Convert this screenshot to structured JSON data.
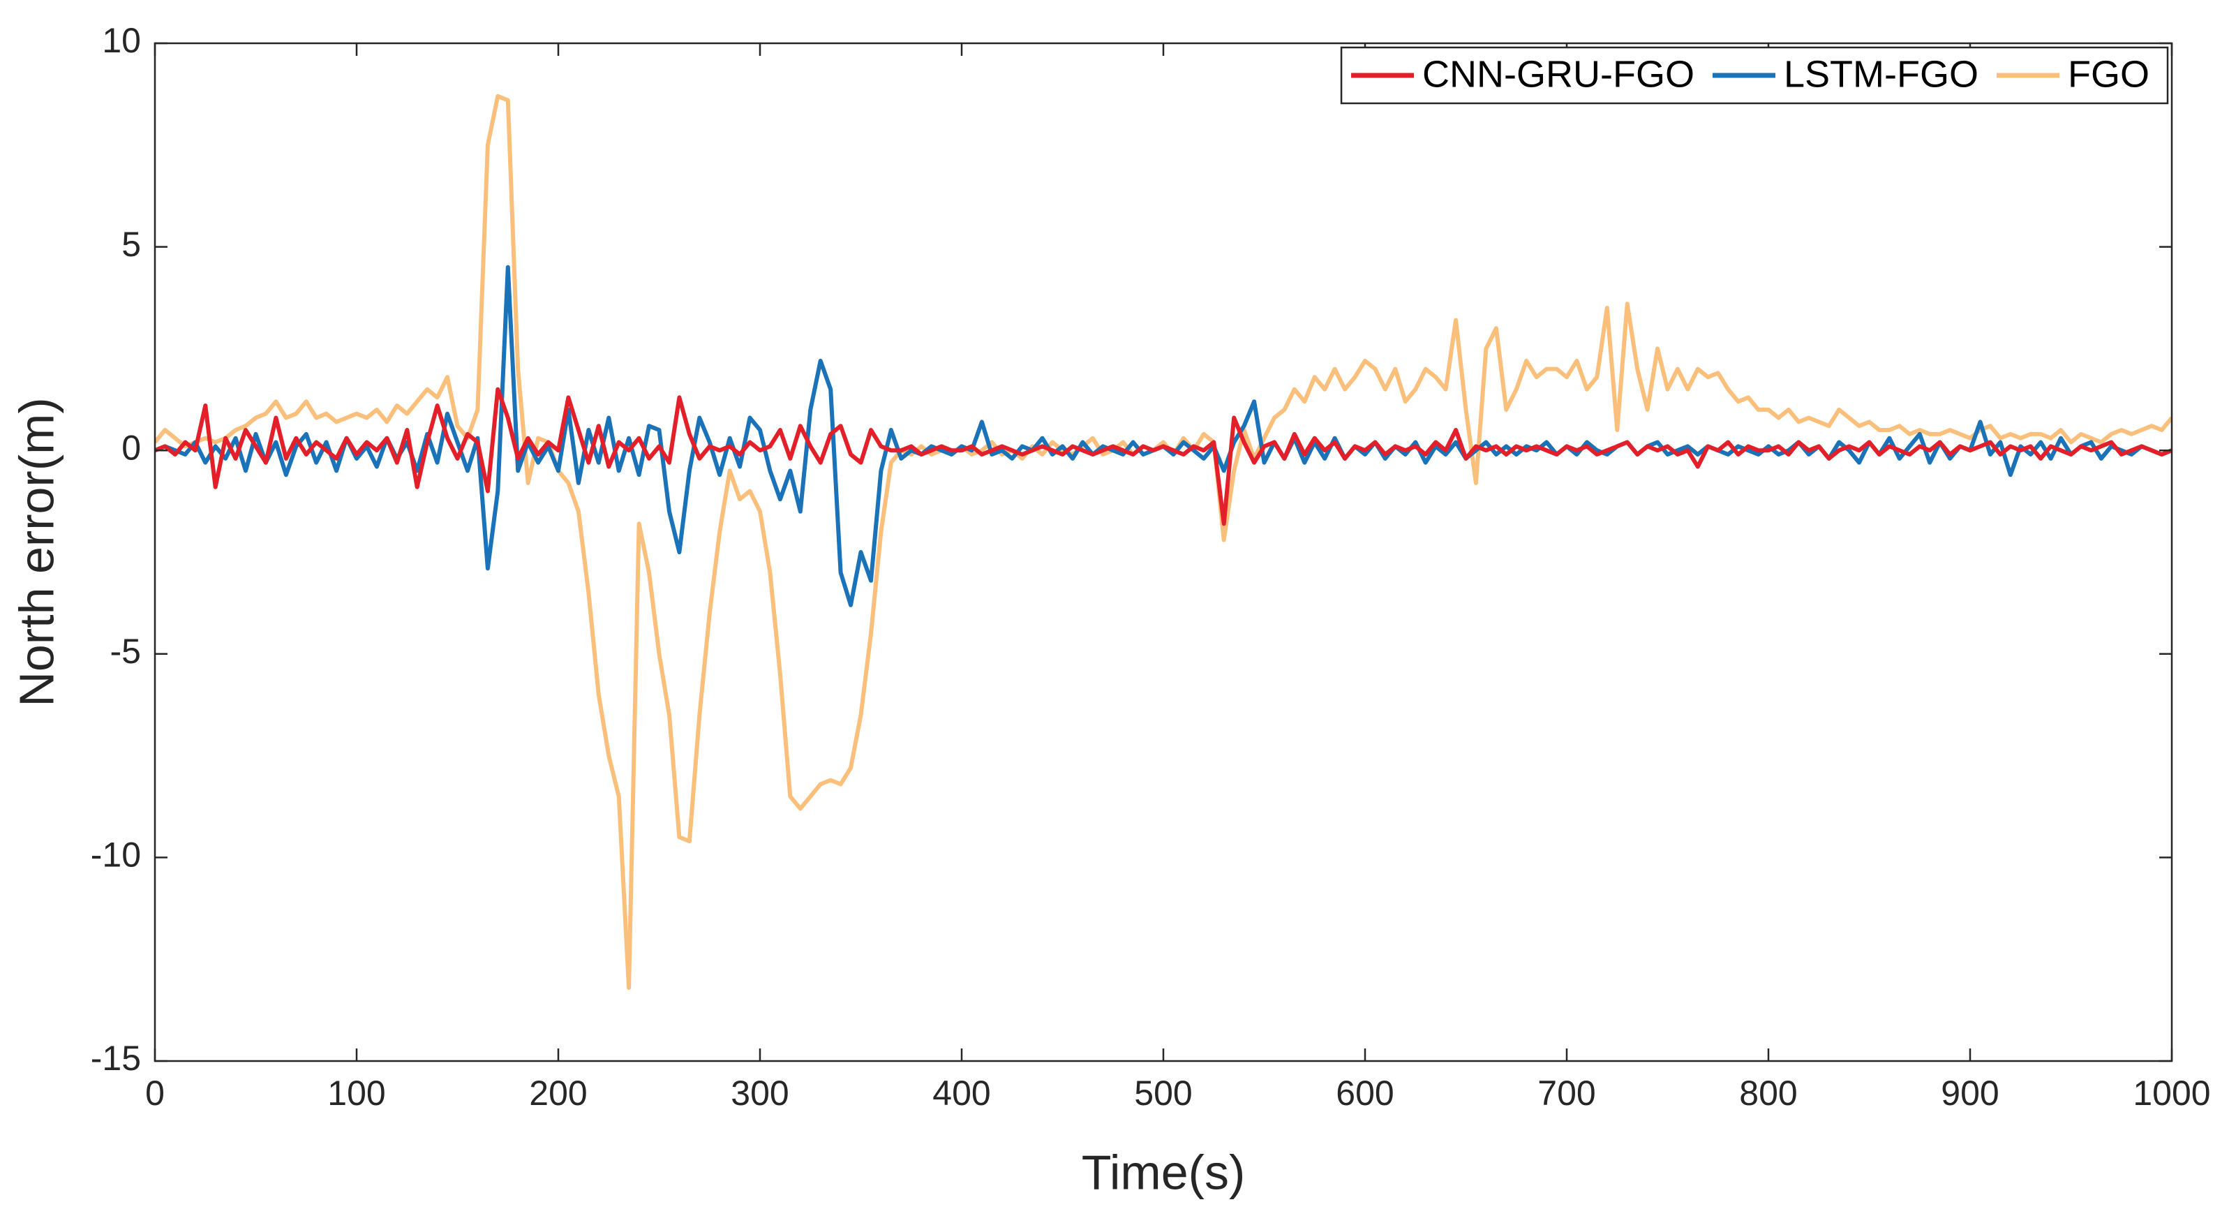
{
  "chart_data": {
    "type": "line",
    "xlabel": "Time(s)",
    "ylabel": "North error(m)",
    "xlim": [
      0,
      1000
    ],
    "xticks": [
      0,
      100,
      200,
      300,
      400,
      500,
      600,
      700,
      800,
      900,
      1000
    ],
    "ylim": [
      -15,
      10
    ],
    "yticks": [
      -15,
      -10,
      -5,
      0,
      5,
      10
    ],
    "legend": "top-right",
    "x": [
      0,
      5,
      10,
      15,
      20,
      25,
      30,
      35,
      40,
      45,
      50,
      55,
      60,
      65,
      70,
      75,
      80,
      85,
      90,
      95,
      100,
      105,
      110,
      115,
      120,
      125,
      130,
      135,
      140,
      145,
      150,
      155,
      160,
      165,
      170,
      175,
      180,
      185,
      190,
      195,
      200,
      205,
      210,
      215,
      220,
      225,
      230,
      235,
      240,
      245,
      250,
      255,
      260,
      265,
      270,
      275,
      280,
      285,
      290,
      295,
      300,
      305,
      310,
      315,
      320,
      325,
      330,
      335,
      340,
      345,
      350,
      355,
      360,
      365,
      370,
      375,
      380,
      385,
      390,
      395,
      400,
      405,
      410,
      415,
      420,
      425,
      430,
      435,
      440,
      445,
      450,
      455,
      460,
      465,
      470,
      475,
      480,
      485,
      490,
      495,
      500,
      505,
      510,
      515,
      520,
      525,
      530,
      535,
      540,
      545,
      550,
      555,
      560,
      565,
      570,
      575,
      580,
      585,
      590,
      595,
      600,
      605,
      610,
      615,
      620,
      625,
      630,
      635,
      640,
      645,
      650,
      655,
      660,
      665,
      670,
      675,
      680,
      685,
      690,
      695,
      700,
      705,
      710,
      715,
      720,
      725,
      730,
      735,
      740,
      745,
      750,
      755,
      760,
      765,
      770,
      775,
      780,
      785,
      790,
      795,
      800,
      805,
      810,
      815,
      820,
      825,
      830,
      835,
      840,
      845,
      850,
      855,
      860,
      865,
      870,
      875,
      880,
      885,
      890,
      895,
      900,
      905,
      910,
      915,
      920,
      925,
      930,
      935,
      940,
      945,
      950,
      955,
      960,
      965,
      970,
      975,
      980,
      985,
      990,
      995,
      1000
    ],
    "series": [
      {
        "name": "CNN-GRU-FGO",
        "color": "#e3202a",
        "values": [
          0.0,
          0.1,
          -0.1,
          0.2,
          0.0,
          1.1,
          -0.9,
          0.3,
          -0.2,
          0.5,
          0.1,
          -0.3,
          0.8,
          -0.2,
          0.3,
          -0.1,
          0.2,
          0.0,
          -0.2,
          0.3,
          -0.1,
          0.2,
          0.0,
          0.3,
          -0.3,
          0.5,
          -0.9,
          0.2,
          1.1,
          0.3,
          -0.2,
          0.4,
          0.2,
          -1.0,
          1.5,
          0.8,
          -0.2,
          0.3,
          -0.1,
          0.2,
          0.0,
          1.3,
          0.5,
          -0.3,
          0.6,
          -0.4,
          0.2,
          0.0,
          0.3,
          -0.2,
          0.1,
          -0.3,
          1.3,
          0.4,
          -0.2,
          0.1,
          0.0,
          0.1,
          -0.1,
          0.2,
          0.0,
          0.1,
          0.5,
          -0.2,
          0.6,
          0.1,
          -0.3,
          0.4,
          0.6,
          -0.1,
          -0.3,
          0.5,
          0.1,
          0.0,
          0.0,
          0.1,
          -0.1,
          0.0,
          0.1,
          0.0,
          0.0,
          0.1,
          -0.1,
          0.0,
          0.1,
          0.0,
          -0.1,
          0.0,
          0.1,
          0.0,
          -0.1,
          0.1,
          0.0,
          -0.1,
          0.0,
          0.1,
          0.0,
          -0.1,
          0.1,
          0.0,
          0.1,
          0.0,
          -0.1,
          0.1,
          0.0,
          0.2,
          -1.8,
          0.8,
          0.2,
          -0.3,
          0.1,
          0.2,
          -0.2,
          0.4,
          -0.1,
          0.3,
          0.0,
          0.2,
          -0.2,
          0.1,
          0.0,
          0.2,
          -0.1,
          0.1,
          0.0,
          0.1,
          -0.1,
          0.2,
          0.0,
          0.5,
          -0.2,
          0.1,
          0.0,
          0.1,
          -0.1,
          0.1,
          0.0,
          0.1,
          0.0,
          -0.1,
          0.1,
          0.0,
          0.1,
          -0.1,
          0.0,
          0.1,
          0.2,
          -0.1,
          0.1,
          0.0,
          0.1,
          -0.1,
          0.0,
          -0.4,
          0.1,
          0.0,
          0.2,
          -0.1,
          0.1,
          0.0,
          0.0,
          0.1,
          -0.1,
          0.2,
          0.0,
          0.1,
          -0.2,
          0.0,
          0.1,
          0.0,
          0.2,
          -0.1,
          0.1,
          0.0,
          -0.1,
          0.1,
          0.0,
          0.2,
          -0.1,
          0.1,
          0.0,
          0.1,
          0.2,
          -0.1,
          0.1,
          0.0,
          0.1,
          -0.2,
          0.1,
          0.0,
          -0.1,
          0.1,
          0.0,
          0.1,
          0.2,
          -0.1,
          0.0,
          0.1,
          0.0,
          -0.1,
          0.0
        ]
      },
      {
        "name": "LSTM-FGO",
        "color": "#1a72b8",
        "values": [
          0.0,
          0.1,
          0.0,
          -0.1,
          0.2,
          -0.3,
          0.1,
          -0.2,
          0.3,
          -0.5,
          0.4,
          -0.3,
          0.2,
          -0.6,
          0.1,
          0.4,
          -0.3,
          0.2,
          -0.5,
          0.3,
          -0.2,
          0.1,
          -0.4,
          0.3,
          -0.2,
          0.2,
          -0.5,
          0.4,
          -0.3,
          0.9,
          0.2,
          -0.5,
          0.3,
          -2.9,
          -1.0,
          4.5,
          -0.5,
          0.2,
          -0.3,
          0.1,
          -0.5,
          1.0,
          -0.8,
          0.5,
          -0.3,
          0.8,
          -0.5,
          0.3,
          -0.6,
          0.6,
          0.5,
          -1.5,
          -2.5,
          -0.5,
          0.8,
          0.2,
          -0.6,
          0.3,
          -0.4,
          0.8,
          0.5,
          -0.5,
          -1.2,
          -0.5,
          -1.5,
          1.0,
          2.2,
          1.5,
          -3.0,
          -3.8,
          -2.5,
          -3.2,
          -0.5,
          0.5,
          -0.2,
          0.0,
          -0.1,
          0.1,
          0.0,
          -0.1,
          0.1,
          0.0,
          0.7,
          -0.1,
          0.0,
          -0.2,
          0.1,
          0.0,
          0.3,
          -0.1,
          0.1,
          -0.2,
          0.2,
          -0.1,
          0.1,
          0.0,
          -0.1,
          0.2,
          -0.1,
          0.0,
          0.1,
          -0.1,
          0.2,
          0.0,
          -0.2,
          0.1,
          -0.5,
          0.2,
          0.6,
          1.2,
          -0.3,
          0.2,
          -0.2,
          0.3,
          -0.3,
          0.2,
          -0.2,
          0.3,
          -0.2,
          0.1,
          -0.1,
          0.2,
          -0.2,
          0.1,
          -0.1,
          0.2,
          -0.3,
          0.1,
          -0.1,
          0.2,
          -0.2,
          0.0,
          0.2,
          -0.1,
          0.1,
          -0.1,
          0.1,
          0.0,
          0.2,
          -0.1,
          0.1,
          -0.1,
          0.2,
          0.0,
          -0.1,
          0.1,
          0.2,
          -0.1,
          0.1,
          0.2,
          -0.1,
          0.0,
          0.1,
          -0.1,
          0.1,
          0.0,
          -0.1,
          0.1,
          0.0,
          -0.1,
          0.1,
          -0.1,
          0.0,
          0.2,
          -0.1,
          0.1,
          -0.2,
          0.2,
          0.0,
          -0.3,
          0.2,
          -0.1,
          0.3,
          -0.2,
          0.1,
          0.4,
          -0.3,
          0.2,
          -0.2,
          0.1,
          0.0,
          0.7,
          -0.1,
          0.2,
          -0.6,
          0.1,
          -0.1,
          0.2,
          -0.2,
          0.3,
          -0.1,
          0.1,
          0.2,
          -0.2,
          0.1,
          0.0,
          -0.1,
          0.1,
          0.0,
          -0.1,
          0.0
        ]
      },
      {
        "name": "FGO",
        "color": "#fbbf7c",
        "values": [
          0.2,
          0.5,
          0.3,
          0.1,
          0.2,
          0.3,
          0.2,
          0.3,
          0.5,
          0.6,
          0.8,
          0.9,
          1.2,
          0.8,
          0.9,
          1.2,
          0.8,
          0.9,
          0.7,
          0.8,
          0.9,
          0.8,
          1.0,
          0.7,
          1.1,
          0.9,
          1.2,
          1.5,
          1.3,
          1.8,
          0.6,
          0.3,
          1.0,
          7.5,
          8.7,
          8.6,
          2.0,
          -0.8,
          0.3,
          0.2,
          -0.5,
          -0.8,
          -1.5,
          -3.5,
          -6.0,
          -7.5,
          -8.5,
          -13.2,
          -1.8,
          -3.0,
          -5.0,
          -6.5,
          -9.5,
          -9.6,
          -6.5,
          -4.0,
          -2.0,
          -0.5,
          -1.2,
          -1.0,
          -1.5,
          -3.0,
          -5.5,
          -8.5,
          -8.8,
          -8.5,
          -8.2,
          -8.1,
          -8.2,
          -7.8,
          -6.5,
          -4.5,
          -2.0,
          -0.3,
          0.0,
          -0.1,
          0.1,
          -0.1,
          0.0,
          -0.1,
          0.1,
          -0.1,
          0.0,
          0.2,
          -0.1,
          0.0,
          -0.2,
          0.1,
          -0.1,
          0.2,
          0.0,
          -0.1,
          0.1,
          0.3,
          -0.1,
          0.0,
          0.2,
          -0.1,
          0.1,
          0.0,
          0.2,
          -0.1,
          0.3,
          0.0,
          0.4,
          0.2,
          -2.2,
          -0.5,
          0.5,
          -0.2,
          0.3,
          0.8,
          1.0,
          1.5,
          1.2,
          1.8,
          1.5,
          2.0,
          1.5,
          1.8,
          2.2,
          2.0,
          1.5,
          2.0,
          1.2,
          1.5,
          2.0,
          1.8,
          1.5,
          3.2,
          1.0,
          -0.8,
          2.5,
          3.0,
          1.0,
          1.5,
          2.2,
          1.8,
          2.0,
          2.0,
          1.8,
          2.2,
          1.5,
          1.8,
          3.5,
          0.5,
          3.6,
          2.0,
          1.0,
          2.5,
          1.5,
          2.0,
          1.5,
          2.0,
          1.8,
          1.9,
          1.5,
          1.2,
          1.3,
          1.0,
          1.0,
          0.8,
          1.0,
          0.7,
          0.8,
          0.7,
          0.6,
          1.0,
          0.8,
          0.6,
          0.7,
          0.5,
          0.5,
          0.6,
          0.4,
          0.5,
          0.4,
          0.4,
          0.5,
          0.4,
          0.3,
          0.5,
          0.6,
          0.3,
          0.4,
          0.3,
          0.4,
          0.4,
          0.3,
          0.5,
          0.2,
          0.4,
          0.3,
          0.2,
          0.4,
          0.5,
          0.4,
          0.5,
          0.6,
          0.5,
          0.8
        ]
      }
    ]
  }
}
